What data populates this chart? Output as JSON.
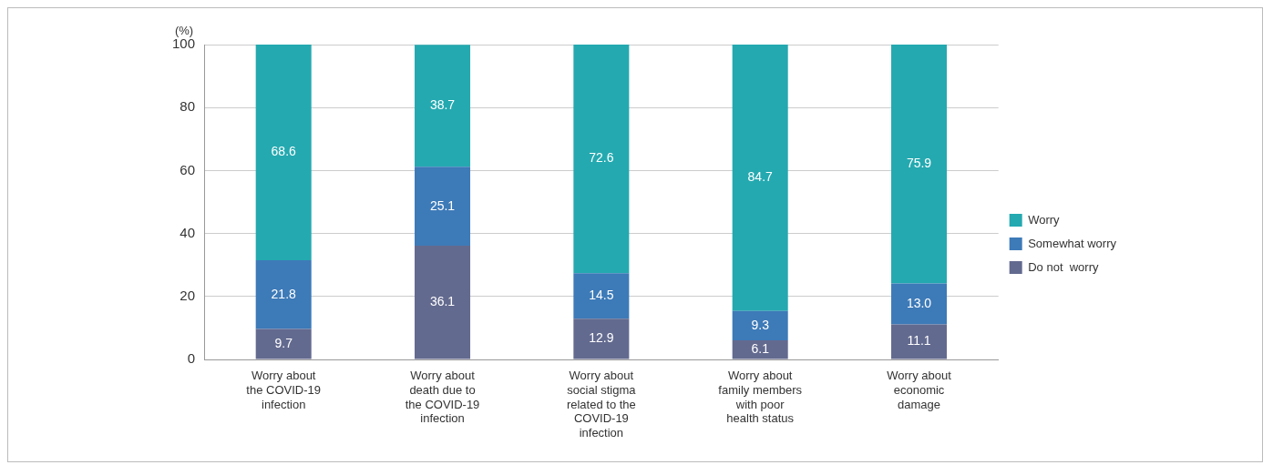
{
  "chart_data": {
    "type": "bar",
    "stacked": true,
    "ylabel": "(%)",
    "categories": [
      "Worry about the COVID-19 infection",
      "Worry about death due to the COVID-19 infection",
      "Worry about social stigma related to the COVID-19 infection",
      "Worry about family members with poor health status",
      "Worry about economic damage"
    ],
    "series": [
      {
        "name": "Do not  worry",
        "color": "#636a8f",
        "values": [
          9.7,
          36.1,
          12.9,
          6.1,
          11.1
        ],
        "value_labels": [
          "9.7",
          "36.1",
          "12.9",
          "6.1",
          "11.1"
        ]
      },
      {
        "name": "Somewhat worry",
        "color": "#3d7ab8",
        "values": [
          21.8,
          25.1,
          14.5,
          9.3,
          13.0
        ],
        "value_labels": [
          "21.8",
          "25.1",
          "14.5",
          "9.3",
          "13.0"
        ]
      },
      {
        "name": "Worry",
        "color": "#24a9b0",
        "values": [
          68.6,
          38.7,
          72.6,
          84.7,
          75.9
        ],
        "value_labels": [
          "68.6",
          "38.7",
          "72.6",
          "84.7",
          "75.9"
        ]
      }
    ],
    "ylim": [
      0,
      100
    ],
    "yticks": [
      0,
      20,
      40,
      60,
      80,
      100
    ],
    "grid": "y",
    "legend": "right"
  }
}
